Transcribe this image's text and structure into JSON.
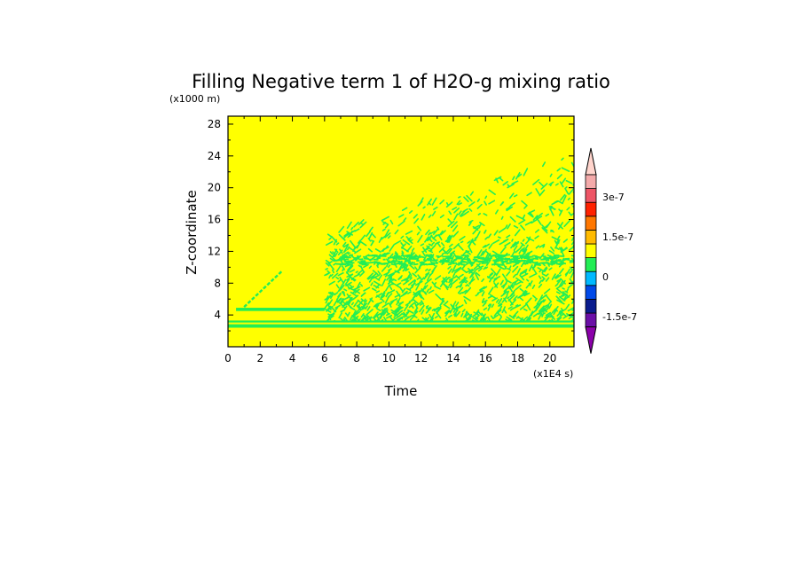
{
  "chart_data": {
    "type": "heatmap",
    "title": "Filling Negative term 1 of H2O-g mixing ratio",
    "xlabel": "Time",
    "ylabel": "Z-coordinate",
    "x_units": "(x1E4 s)",
    "y_units": "(x1000 m)",
    "xlim": [
      0,
      21.5
    ],
    "ylim": [
      0,
      29
    ],
    "xticks": [
      "0",
      "2",
      "4",
      "6",
      "8",
      "10",
      "12",
      "14",
      "16",
      "18",
      "20"
    ],
    "yticks": [
      "4",
      "8",
      "12",
      "16",
      "20",
      "24",
      "28"
    ],
    "background_level_color": "#ffff00",
    "anomaly_color": "#22ee55",
    "features": [
      {
        "name": "low-level band",
        "x": [
          0,
          21.5
        ],
        "z": [
          2.4,
          3.3
        ]
      },
      {
        "name": "upper thin band",
        "x": [
          0.5,
          6.0
        ],
        "z": [
          4.5,
          4.9
        ]
      },
      {
        "name": "rising streak",
        "x": [
          1.0,
          3.4
        ],
        "z": [
          5.0,
          9.6
        ]
      },
      {
        "name": "patchy region",
        "x": [
          6.0,
          21.5
        ],
        "z": [
          3.0,
          24.5
        ]
      }
    ],
    "colorbar": {
      "colors": [
        "#8b00aa",
        "#6b0fa7",
        "#0a1c8e",
        "#0049e8",
        "#00b9ff",
        "#22ee55",
        "#ffff00",
        "#ffbb00",
        "#ff7700",
        "#ff2200",
        "#ee5566",
        "#f4aaaa",
        "#ffd4cc"
      ],
      "labels": [
        "3e-7",
        "1.5e-7",
        "0",
        "-1.5e-7"
      ]
    }
  }
}
